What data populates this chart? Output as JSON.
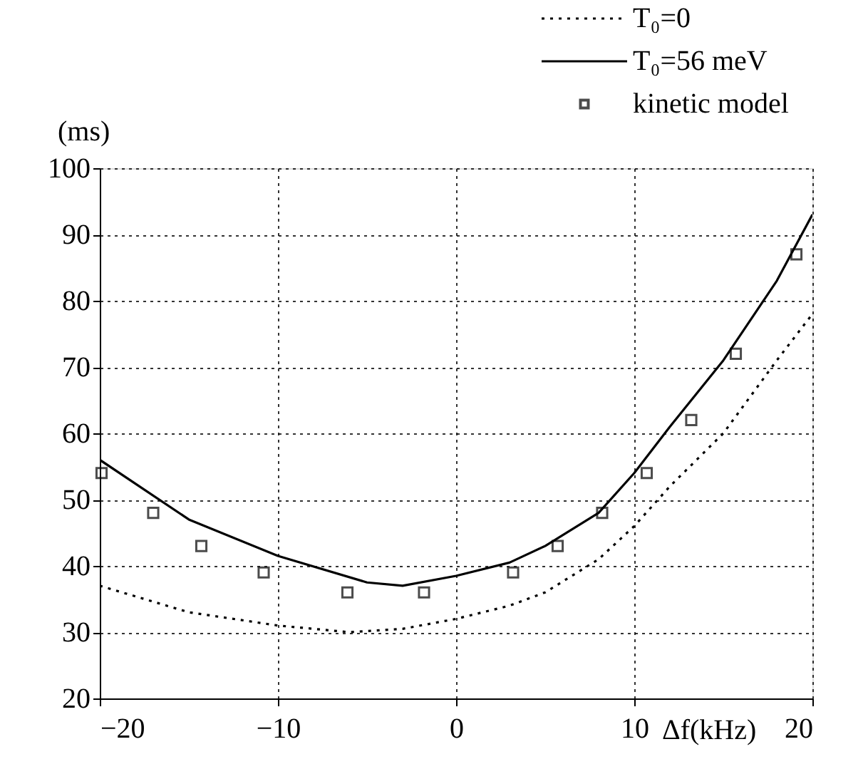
{
  "chart_data": {
    "type": "line",
    "xlabel": "Δf(kHz)",
    "ylabel": "(ms)",
    "xlim": [
      -20,
      20
    ],
    "ylim": [
      20,
      100
    ],
    "xticks": [
      -20,
      -10,
      0,
      10,
      20
    ],
    "yticks": [
      20,
      30,
      40,
      50,
      60,
      70,
      80,
      90,
      100
    ],
    "grid": true,
    "legend": "top right",
    "series": [
      {
        "name": "T₀=0",
        "color": "#000000",
        "line_style": "dotted",
        "marker": "none",
        "x": [
          -20,
          -15,
          -10,
          -6,
          -3,
          0,
          3,
          5,
          8,
          10,
          12,
          15,
          18,
          20
        ],
        "values": [
          37,
          33,
          31,
          30,
          30.5,
          32,
          34,
          36,
          41,
          46,
          52,
          60,
          71,
          78
        ]
      },
      {
        "name": "T₀=56 meV",
        "color": "#000000",
        "line_style": "solid",
        "marker": "none",
        "x": [
          -20,
          -15,
          -10,
          -5,
          -3,
          0,
          3,
          5,
          8,
          10,
          12,
          15,
          18,
          20
        ],
        "values": [
          56,
          47,
          41.5,
          37.5,
          37,
          38.5,
          40.5,
          43,
          48,
          54,
          61,
          71,
          83,
          93
        ]
      },
      {
        "name": "kinetic model",
        "color": "#000000",
        "type": "scatter",
        "marker": "square",
        "x": [
          -19.9,
          -17,
          -14.3,
          -10.8,
          -6.1,
          -1.8,
          3.2,
          5.7,
          8.2,
          10.7,
          13.2,
          15.7,
          19.1
        ],
        "values": [
          54,
          48,
          43,
          39,
          36,
          36,
          39,
          43,
          48,
          54,
          62,
          72,
          87
        ]
      }
    ]
  }
}
